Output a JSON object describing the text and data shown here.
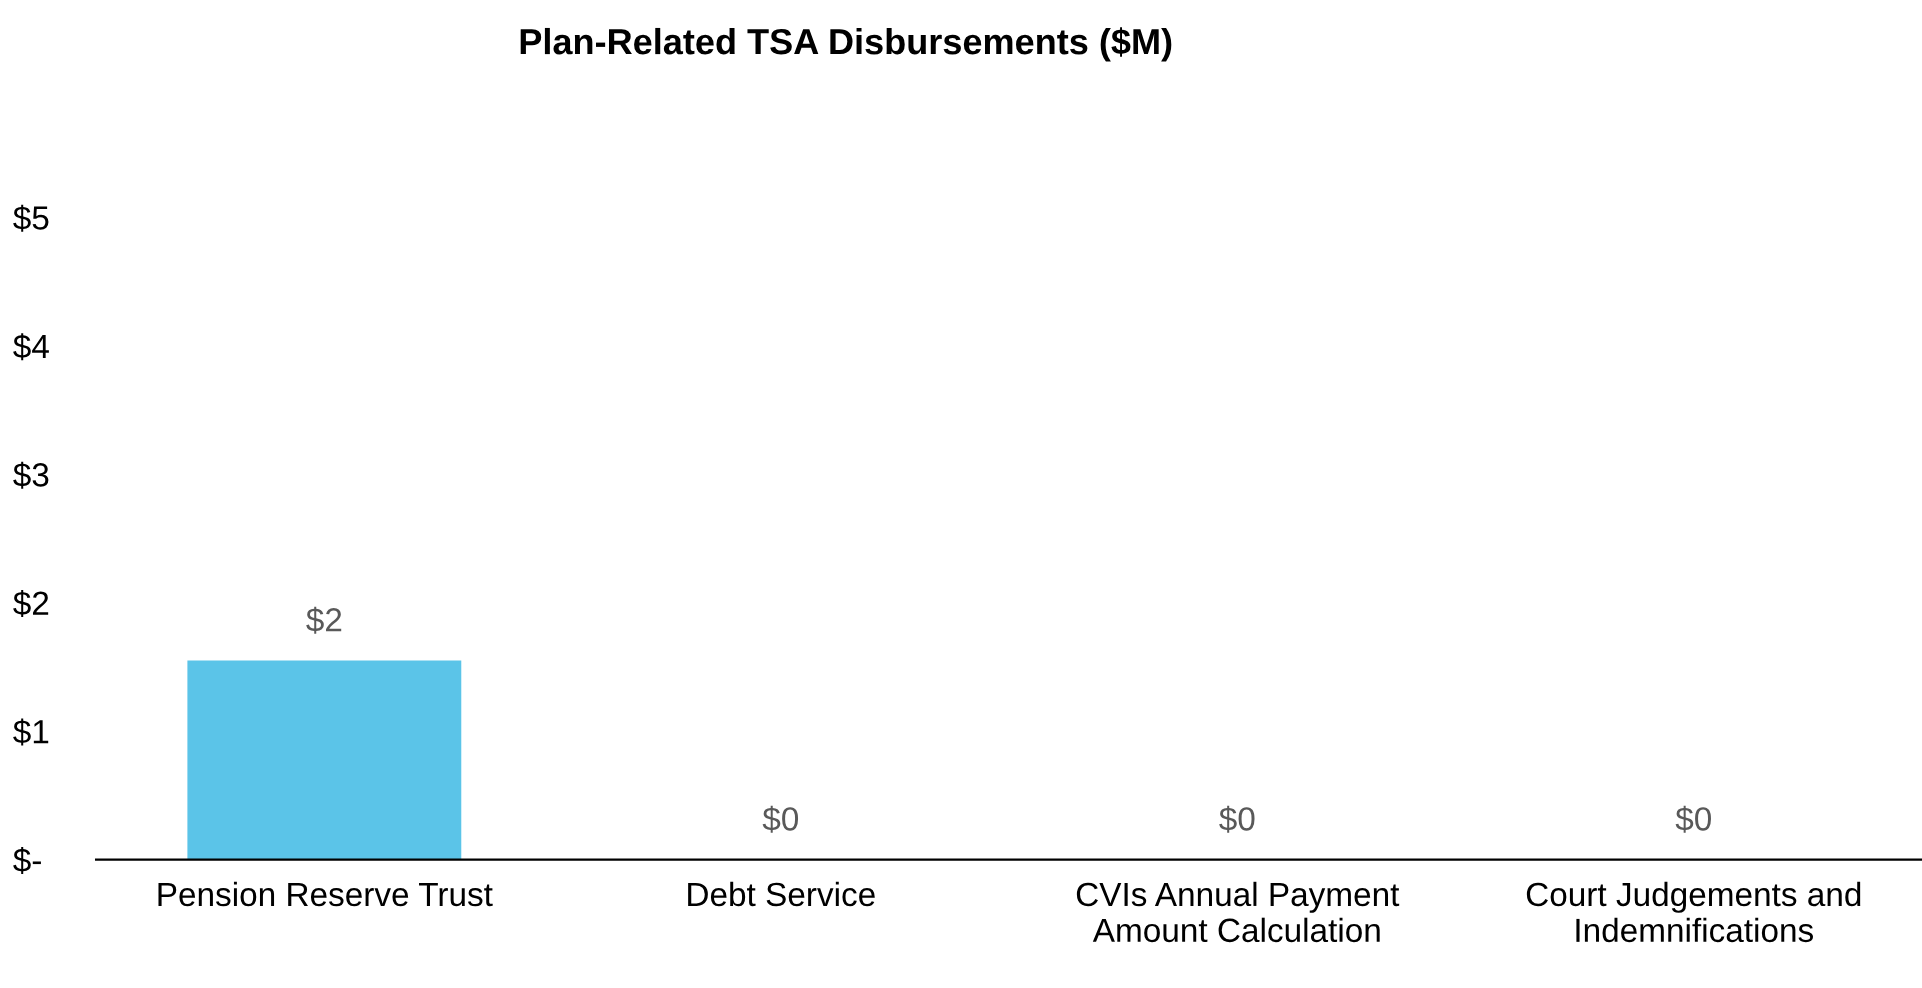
{
  "chart_data": {
    "type": "bar",
    "title": "Plan-Related TSA Disbursements ($M)",
    "categories": [
      "Pension Reserve Trust",
      "Debt Service",
      "CVIs Annual Payment\nAmount Calculation",
      "Court Judgements and\nIndemnifications"
    ],
    "values": [
      1.55,
      0,
      0,
      0
    ],
    "color": "#5bc4e8",
    "value_labels": [
      "$2",
      "$0",
      "$0",
      "$0"
    ],
    "ylim": [
      0,
      5
    ],
    "yticks": [
      {
        "value": 0,
        "label": "$-"
      },
      {
        "value": 1,
        "label": "$1"
      },
      {
        "value": 2,
        "label": "$2"
      },
      {
        "value": 3,
        "label": "$3"
      },
      {
        "value": 4,
        "label": "$4"
      },
      {
        "value": 5,
        "label": "$5"
      }
    ],
    "grid": false,
    "legend": false
  }
}
